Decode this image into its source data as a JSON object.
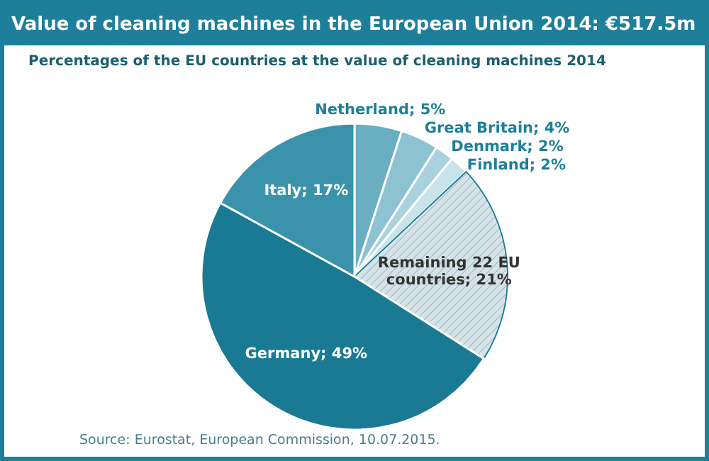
{
  "chart_data": {
    "type": "pie",
    "title": "Value of cleaning machines in the European Union 2014: €517.5m",
    "subtitle": "Percentages of the EU countries at the value of cleaning machines 2014",
    "categories": [
      "Netherland",
      "Great Britain",
      "Denmark",
      "Finland",
      "Remaining 22 EU countries",
      "Germany",
      "Italy"
    ],
    "values": [
      5,
      4,
      2,
      2,
      21,
      49,
      17
    ],
    "value_labels": [
      "5%",
      "4%",
      "2%",
      "2%",
      "21%",
      "49%",
      "17%"
    ],
    "colors": [
      "#6aaec2",
      "#8cc2d2",
      "#a9d2de",
      "#c8e3ea",
      "#d5e3e8",
      "#1a7a94",
      "#3a93ab"
    ],
    "annotations": [
      "Source: Eurostat, European Commission, 10.07.2015."
    ]
  }
}
